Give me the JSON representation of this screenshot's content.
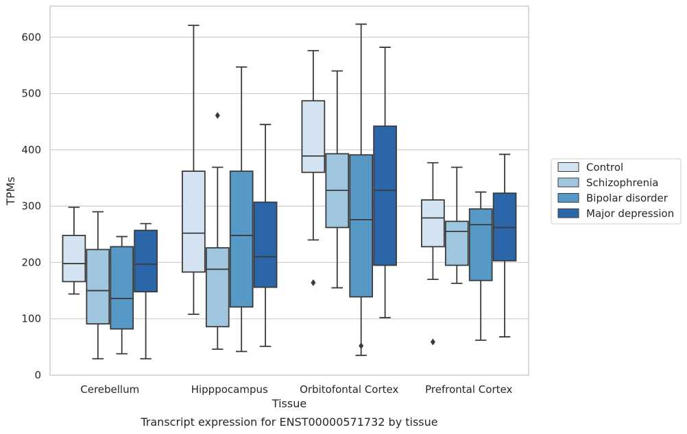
{
  "caption": "Transcript expression for ENST00000571732 by tissue",
  "chart_data": {
    "type": "box",
    "xlabel": "Tissue",
    "ylabel": "TPMs",
    "ylim": [
      0,
      655
    ],
    "yticks": [
      0,
      100,
      200,
      300,
      400,
      500,
      600
    ],
    "grid": "horizontal",
    "legend_position": "right",
    "categories": [
      "Cerebellum",
      "Hipppocampus",
      "Orbitofontal Cortex",
      "Prefrontal Cortex"
    ],
    "series": [
      {
        "name": "Control",
        "color": "#d4e3f2",
        "boxes": [
          {
            "whisker_low": 144,
            "q1": 166,
            "median": 198,
            "q3": 248,
            "whisker_high": 298,
            "outliers": []
          },
          {
            "whisker_low": 108,
            "q1": 183,
            "median": 252,
            "q3": 362,
            "whisker_high": 621,
            "outliers": []
          },
          {
            "whisker_low": 240,
            "q1": 360,
            "median": 389,
            "q3": 487,
            "whisker_high": 576,
            "outliers": [
              164
            ]
          },
          {
            "whisker_low": 170,
            "q1": 228,
            "median": 279,
            "q3": 311,
            "whisker_high": 377,
            "outliers": [
              59
            ]
          }
        ]
      },
      {
        "name": "Schizophrenia",
        "color": "#9ec6de",
        "boxes": [
          {
            "whisker_low": 29,
            "q1": 91,
            "median": 150,
            "q3": 223,
            "whisker_high": 290,
            "outliers": []
          },
          {
            "whisker_low": 46,
            "q1": 86,
            "median": 188,
            "q3": 226,
            "whisker_high": 369,
            "outliers": [
              461
            ]
          },
          {
            "whisker_low": 155,
            "q1": 262,
            "median": 328,
            "q3": 393,
            "whisker_high": 540,
            "outliers": []
          },
          {
            "whisker_low": 163,
            "q1": 195,
            "median": 255,
            "q3": 273,
            "whisker_high": 369,
            "outliers": []
          }
        ]
      },
      {
        "name": "Bipolar disorder",
        "color": "#5698c6",
        "boxes": [
          {
            "whisker_low": 38,
            "q1": 82,
            "median": 136,
            "q3": 228,
            "whisker_high": 246,
            "outliers": []
          },
          {
            "whisker_low": 42,
            "q1": 121,
            "median": 248,
            "q3": 362,
            "whisker_high": 547,
            "outliers": []
          },
          {
            "whisker_low": 35,
            "q1": 139,
            "median": 276,
            "q3": 391,
            "whisker_high": 623,
            "outliers": [
              52
            ]
          },
          {
            "whisker_low": 62,
            "q1": 168,
            "median": 267,
            "q3": 295,
            "whisker_high": 325,
            "outliers": []
          }
        ]
      },
      {
        "name": "Major depression",
        "color": "#2a66a8",
        "boxes": [
          {
            "whisker_low": 29,
            "q1": 148,
            "median": 197,
            "q3": 257,
            "whisker_high": 269,
            "outliers": []
          },
          {
            "whisker_low": 51,
            "q1": 156,
            "median": 210,
            "q3": 307,
            "whisker_high": 445,
            "outliers": []
          },
          {
            "whisker_low": 102,
            "q1": 195,
            "median": 328,
            "q3": 442,
            "whisker_high": 582,
            "outliers": []
          },
          {
            "whisker_low": 68,
            "q1": 203,
            "median": 262,
            "q3": 323,
            "whisker_high": 392,
            "outliers": []
          }
        ]
      }
    ]
  }
}
